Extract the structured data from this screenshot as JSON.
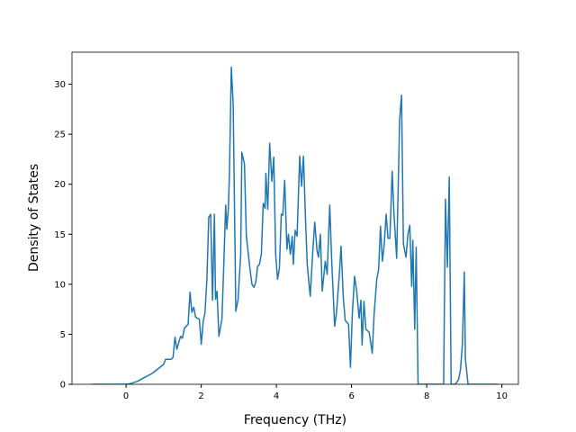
{
  "chart_data": {
    "type": "line",
    "xlabel": "Frequency (THz)",
    "ylabel": "Density of States",
    "x": [
      -0.9,
      -0.5,
      0,
      0.1,
      0.3,
      0.5,
      0.7,
      0.9,
      1.0,
      1.05,
      1.2,
      1.25,
      1.3,
      1.35,
      1.45,
      1.5,
      1.55,
      1.65,
      1.7,
      1.75,
      1.8,
      1.85,
      1.95,
      2.0,
      2.05,
      2.1,
      2.15,
      2.2,
      2.25,
      2.3,
      2.35,
      2.38,
      2.42,
      2.47,
      2.55,
      2.6,
      2.65,
      2.68,
      2.72,
      2.75,
      2.8,
      2.85,
      2.92,
      2.98,
      3.05,
      3.08,
      3.15,
      3.2,
      3.3,
      3.35,
      3.4,
      3.45,
      3.5,
      3.55,
      3.6,
      3.65,
      3.7,
      3.72,
      3.77,
      3.82,
      3.88,
      3.93,
      3.98,
      4.03,
      4.08,
      4.13,
      4.17,
      4.22,
      4.28,
      4.32,
      4.37,
      4.42,
      4.45,
      4.5,
      4.55,
      4.62,
      4.67,
      4.72,
      4.77,
      4.82,
      4.9,
      4.97,
      5.02,
      5.08,
      5.12,
      5.17,
      5.22,
      5.3,
      5.35,
      5.42,
      5.47,
      5.55,
      5.6,
      5.68,
      5.72,
      5.78,
      5.83,
      5.92,
      5.97,
      6.02,
      6.08,
      6.14,
      6.2,
      6.25,
      6.28,
      6.33,
      6.38,
      6.47,
      6.55,
      6.6,
      6.67,
      6.72,
      6.77,
      6.82,
      6.87,
      6.92,
      6.97,
      7.02,
      7.08,
      7.13,
      7.2,
      7.28,
      7.33,
      7.38,
      7.45,
      7.5,
      7.55,
      7.6,
      7.63,
      7.68,
      7.72,
      7.77,
      7.85,
      8.0,
      8.4,
      8.45,
      8.5,
      8.55,
      8.6,
      8.65,
      8.75,
      8.8,
      8.85,
      8.9,
      8.95,
      9.0,
      9.03,
      9.1,
      9.5,
      9.9
    ],
    "series": [
      {
        "color": "#1f77b4",
        "values": [
          0,
          0,
          0,
          0.05,
          0.3,
          0.7,
          1.1,
          1.7,
          2.0,
          2.5,
          2.5,
          2.7,
          4.7,
          3.5,
          4.8,
          4.6,
          5.6,
          6.0,
          9.2,
          7.2,
          7.7,
          6.7,
          6.5,
          4.0,
          6.2,
          7.2,
          10.5,
          16.7,
          17.0,
          8.4,
          17.0,
          8.5,
          9.3,
          4.8,
          6.5,
          12.0,
          17.9,
          15.5,
          17.5,
          21.0,
          31.7,
          28.0,
          7.3,
          8.5,
          13.0,
          23.2,
          22.0,
          14.8,
          11.4,
          10.0,
          9.7,
          10.2,
          11.8,
          12.0,
          13.0,
          18.1,
          17.6,
          21.1,
          17.5,
          24.1,
          20.3,
          22.7,
          13.0,
          10.5,
          11.6,
          17.0,
          16.9,
          20.4,
          13.5,
          15.0,
          13.0,
          14.8,
          12.0,
          15.4,
          14.8,
          22.8,
          19.8,
          22.8,
          17.0,
          12.0,
          8.8,
          13.4,
          16.2,
          13.4,
          12.7,
          15.0,
          9.3,
          12.3,
          11.0,
          17.9,
          12.5,
          5.8,
          7.2,
          11.3,
          13.8,
          8.7,
          6.4,
          6.0,
          1.7,
          7.0,
          10.8,
          9.2,
          6.6,
          8.4,
          3.9,
          8.3,
          5.5,
          5.2,
          3.1,
          7.0,
          10.5,
          11.5,
          15.8,
          12.3,
          14.0,
          17.0,
          14.6,
          14.6,
          21.3,
          17.0,
          12.6,
          26.5,
          28.9,
          14.0,
          12.7,
          15.0,
          15.9,
          9.8,
          14.4,
          5.5,
          13.7,
          0,
          0,
          0,
          0,
          0,
          18.5,
          11.7,
          20.7,
          0,
          0,
          0.2,
          0.5,
          1.5,
          4.0,
          11.2,
          2.5,
          0,
          0,
          0
        ]
      }
    ],
    "xlim": [
      -1.44,
      10.44
    ],
    "ylim": [
      0,
      33.2
    ],
    "xticks": [
      0,
      2,
      4,
      6,
      8,
      10
    ],
    "yticks": [
      0,
      5,
      10,
      15,
      20,
      25,
      30
    ]
  }
}
